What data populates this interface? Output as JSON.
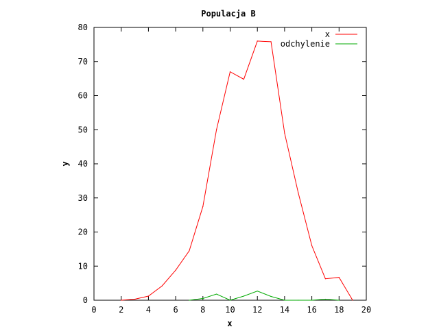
{
  "chart_data": {
    "type": "line",
    "title": "Populacja B",
    "xlabel": "x",
    "ylabel": "y",
    "xlim": [
      0,
      20
    ],
    "ylim": [
      0,
      80
    ],
    "xticks": [
      0,
      2,
      4,
      6,
      8,
      10,
      12,
      14,
      16,
      18,
      20
    ],
    "yticks": [
      0,
      10,
      20,
      30,
      40,
      50,
      60,
      70,
      80
    ],
    "grid": false,
    "legend_position": "top-right",
    "series": [
      {
        "name": "x",
        "color": "#ff0000",
        "x": [
          2,
          3,
          4,
          5,
          6,
          7,
          8,
          9,
          10,
          11,
          12,
          13,
          14,
          15,
          16,
          17,
          18,
          19
        ],
        "y": [
          0,
          0.3,
          1.2,
          4.2,
          8.8,
          14.5,
          27.5,
          50,
          67,
          64.8,
          76,
          75.8,
          49,
          31.5,
          16,
          6.3,
          6.7,
          0
        ]
      },
      {
        "name": "odchylenie",
        "color": "#00aa00",
        "x": [
          7,
          8,
          9,
          10,
          11,
          12,
          13,
          14,
          15,
          16,
          17,
          18
        ],
        "y": [
          0,
          0.5,
          1.8,
          0,
          1.2,
          2.7,
          1.1,
          0,
          0,
          0,
          0.3,
          0
        ]
      }
    ]
  }
}
